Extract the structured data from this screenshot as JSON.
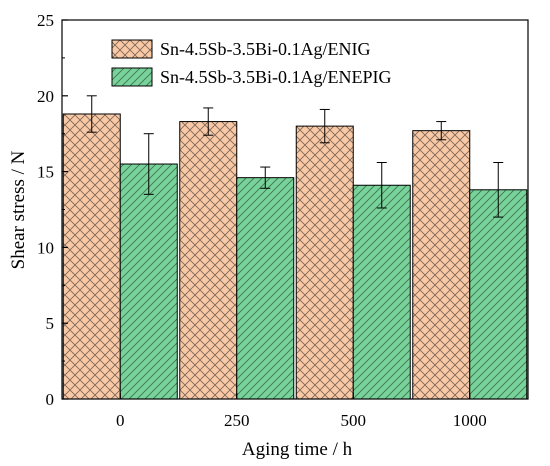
{
  "chart_data": {
    "type": "bar",
    "xlabel": "Aging time / h",
    "ylabel": "Shear stress / N",
    "ylim": [
      0,
      25
    ],
    "yticks": [
      0,
      5,
      10,
      15,
      20,
      25
    ],
    "categories": [
      "0",
      "250",
      "500",
      "1000"
    ],
    "series": [
      {
        "name": "Sn-4.5Sb-3.5Bi-0.1Ag/ENIG",
        "values": [
          18.8,
          18.3,
          18.0,
          17.7
        ],
        "errors": [
          1.2,
          0.9,
          1.1,
          0.6
        ],
        "color": "#f9c9a6",
        "hatch": "cross"
      },
      {
        "name": "Sn-4.5Sb-3.5Bi-0.1Ag/ENEPIG",
        "values": [
          15.5,
          14.6,
          14.1,
          13.8
        ],
        "errors": [
          2.0,
          0.7,
          1.5,
          1.8
        ],
        "color": "#78d39a",
        "hatch": "diagonal"
      }
    ],
    "legend_position": "top"
  }
}
